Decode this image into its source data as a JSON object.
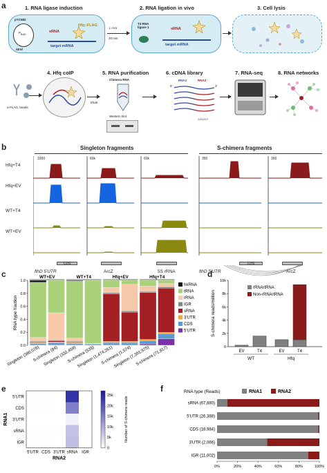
{
  "panel_a": {
    "letter": "a",
    "steps": [
      {
        "title": "1. RNA ligase induction"
      },
      {
        "title": "2. RNA ligation in vivo"
      },
      {
        "title": "3. Cell lysis"
      },
      {
        "title": "4. Hfq coIP"
      },
      {
        "title": "5. RNA purification"
      },
      {
        "title": "6. cDNA library"
      },
      {
        "title": "7. RNA-seq"
      },
      {
        "title": "8. RNA networks"
      }
    ],
    "step1": {
      "plasmid": "pYC582",
      "promoter": "P",
      "promoter_sub": "BAD",
      "ligase": "t4rnl",
      "srna": "sRNA",
      "hfq": "Hfq::FLAG",
      "target": "target mRNA"
    },
    "arrow1": {
      "top": "L-Ara",
      "bottom": "30 min"
    },
    "step2": {
      "ligase": "T4 RNA ligase 1",
      "srna": "sRNA",
      "target": "target mRNA"
    },
    "step4": {
      "beads": "α-FLAG, beads"
    },
    "step5": {
      "elute": "Elute",
      "chimera": "Chimera RNA",
      "western": "Western blot"
    },
    "step6": {
      "rna1": "RNA1",
      "rna2": "RNA2",
      "five": "5'",
      "three": "3'",
      "adapter": "adapter"
    }
  },
  "panel_b": {
    "letter": "b",
    "singleton_title": "Singleton fragments",
    "chimera_title": "S-chimera fragments",
    "rows": [
      "Hfq+T4",
      "Hfq+EV",
      "WT+T4",
      "WT+EV"
    ],
    "columns": [
      {
        "ymax": "1000",
        "ymin": "0",
        "gene_label": "flhD 5'UTR",
        "box": "CDS"
      },
      {
        "ymax": "60k",
        "ymin": "0",
        "gene_label": "ArcZ",
        "box": ""
      },
      {
        "ymax": "60k",
        "ymin": "0",
        "gene_label": "5S rRNA",
        "box": ""
      },
      {
        "ymax": "350",
        "ymin": "0",
        "gene_label": "flhD 5'UTR",
        "box": "CDS"
      },
      {
        "ymax": "350",
        "ymin": "0",
        "gene_label": "ArcZ",
        "box": ""
      }
    ],
    "row_colors": [
      "#8b1a1a",
      "#1565e0",
      "#8a8a10",
      "#8a8a10"
    ]
  },
  "panel_c": {
    "letter": "c",
    "ylabel": "RNA type fraction",
    "group_labels": [
      "WT+EV",
      "WT+T4",
      "Hfq+EV",
      "Hfq+T4"
    ],
    "legend": [
      {
        "name": "hkRNA",
        "color": "#111111"
      },
      {
        "name": "tRNA",
        "color": "#a8d17a"
      },
      {
        "name": "rRNA",
        "color": "#f7c9a8"
      },
      {
        "name": "IGR",
        "color": "#7a8a8a"
      },
      {
        "name": "sRNA",
        "color": "#a31f24"
      },
      {
        "name": "3'UTR",
        "color": "#f5a23b"
      },
      {
        "name": "CDS",
        "color": "#5b9bd5"
      },
      {
        "name": "5'UTR",
        "color": "#7b2fa8"
      }
    ],
    "yticks": [
      "0.0",
      "0.2",
      "0.4",
      "0.6",
      "0.8",
      "1.0"
    ],
    "categories": [
      "Singleton (380,076)",
      "S-chimera (84)",
      "Singleton (332,459)",
      "S-chimera (535)",
      "Singleton (1,474,261)",
      "S-chimera (1,574)",
      "Singleton (7,391,975)",
      "S-chimera (71,817)"
    ]
  },
  "panel_d": {
    "letter": "d",
    "ylabel": "S-chimera reads/million",
    "yticks": [
      "0",
      "2k",
      "4k",
      "6k",
      "8k",
      "10k"
    ],
    "legend": [
      {
        "name": "rRNA/tRNA",
        "color": "#808080"
      },
      {
        "name": "Non-rRNA/tRNA",
        "color": "#8b1a1a"
      }
    ],
    "xticks": [
      "EV",
      "T4",
      "EV",
      "T4"
    ],
    "groups": [
      "WT",
      "Hfq"
    ]
  },
  "panel_e": {
    "letter": "e",
    "ylabel": "RNA1",
    "xlabel": "RNA2",
    "rows": [
      "5'UTR",
      "CDS",
      "3'UTR",
      "sRNA",
      "IGR"
    ],
    "cols": [
      "5'UTR",
      "CDS",
      "3'UTR",
      "sRNA",
      "IGR"
    ],
    "colorbar_label": "Number of S-chimera reads",
    "colorbar_ticks": [
      "0",
      "5k",
      "10k",
      "15k",
      "20k",
      "25k"
    ]
  },
  "panel_f": {
    "letter": "f",
    "legend_title": "RNA type (Reads)",
    "legend": [
      {
        "name": "RNA1",
        "color": "#808080"
      },
      {
        "name": "RNA2",
        "color": "#8b1a1a"
      }
    ],
    "categories": [
      "sRNA (67,880)",
      "5'UTR (26,388)",
      "CDS (18,984)",
      "3'UTR (2,066)",
      "IGR (11,002)"
    ],
    "xticks": [
      "0%",
      "20%",
      "40%",
      "60%",
      "80%",
      "100%"
    ]
  },
  "chart_data": [
    {
      "type": "bar",
      "stacked": true,
      "categories": [
        "Singleton (380,076)",
        "S-chimera (84)",
        "Singleton (332,459)",
        "S-chimera (535)",
        "Singleton (1,474,261)",
        "S-chimera (1,574)",
        "Singleton (7,391,975)",
        "S-chimera (71,817)"
      ],
      "ylabel": "RNA type fraction",
      "ylim": [
        0,
        1
      ],
      "series": [
        {
          "name": "5'UTR",
          "values": [
            0.01,
            0.01,
            0.01,
            0.0,
            0.01,
            0.01,
            0.02,
            0.1
          ]
        },
        {
          "name": "CDS",
          "values": [
            0.02,
            0.03,
            0.02,
            0.02,
            0.03,
            0.03,
            0.05,
            0.08
          ]
        },
        {
          "name": "3'UTR",
          "values": [
            0.01,
            0.01,
            0.01,
            0.0,
            0.02,
            0.02,
            0.02,
            0.02
          ]
        },
        {
          "name": "sRNA",
          "values": [
            0.01,
            0.02,
            0.01,
            0.0,
            0.73,
            0.45,
            0.72,
            0.68
          ]
        },
        {
          "name": "IGR",
          "values": [
            0.01,
            0.01,
            0.01,
            0.0,
            0.02,
            0.02,
            0.02,
            0.02
          ]
        },
        {
          "name": "rRNA",
          "values": [
            0.06,
            0.42,
            0.05,
            0.01,
            0.08,
            0.41,
            0.08,
            0.05
          ]
        },
        {
          "name": "tRNA",
          "values": [
            0.85,
            0.5,
            0.88,
            0.97,
            0.11,
            0.06,
            0.09,
            0.05
          ]
        },
        {
          "name": "hkRNA",
          "values": [
            0.03,
            0.0,
            0.01,
            0.0,
            0.0,
            0.0,
            0.0,
            0.0
          ]
        }
      ]
    },
    {
      "type": "bar",
      "stacked": true,
      "categories": [
        "WT EV",
        "WT T4",
        "Hfq EV",
        "Hfq T4"
      ],
      "ylabel": "S-chimera reads/million",
      "ylim": [
        0,
        10000
      ],
      "series": [
        {
          "name": "Non-rRNA/tRNA",
          "values": [
            0,
            0,
            0,
            8300
          ]
        },
        {
          "name": "rRNA/tRNA",
          "values": [
            220,
            1600,
            1050,
            1050
          ]
        }
      ]
    },
    {
      "type": "heatmap",
      "rows": [
        "5'UTR",
        "CDS",
        "3'UTR",
        "sRNA",
        "IGR"
      ],
      "cols": [
        "5'UTR",
        "CDS",
        "3'UTR",
        "sRNA",
        "IGR"
      ],
      "xlabel": "RNA2",
      "ylabel": "RNA1",
      "values": [
        [
          100,
          100,
          50,
          24000,
          100
        ],
        [
          100,
          100,
          50,
          15000,
          100
        ],
        [
          50,
          50,
          20,
          1500,
          50
        ],
        [
          200,
          200,
          100,
          7000,
          200
        ],
        [
          100,
          100,
          50,
          7500,
          100
        ]
      ],
      "zlim": [
        0,
        27000
      ]
    },
    {
      "type": "bar",
      "orientation": "horizontal",
      "stacked": true,
      "categories": [
        "sRNA (67,880)",
        "5'UTR (26,388)",
        "CDS (18,984)",
        "3'UTR (2,066)",
        "IGR (11,002)"
      ],
      "xlim": [
        0,
        1
      ],
      "series": [
        {
          "name": "RNA1",
          "values": [
            0.1,
            0.99,
            0.99,
            0.49,
            0.89
          ]
        },
        {
          "name": "RNA2",
          "values": [
            0.9,
            0.01,
            0.01,
            0.51,
            0.11
          ]
        }
      ]
    }
  ]
}
